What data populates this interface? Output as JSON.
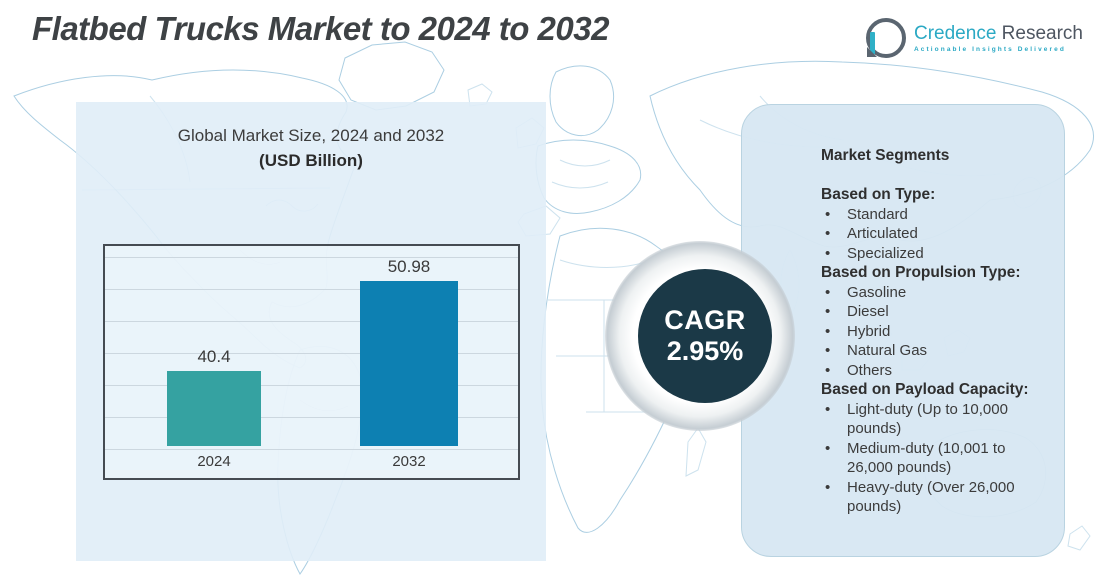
{
  "header": {
    "title": "Flatbed Trucks Market to 2024 to 2032"
  },
  "logo": {
    "icon": "bar-chart-bubble-icon",
    "brand_primary": "Credence",
    "brand_secondary": "Research",
    "tagline": "Actionable Insights Delivered",
    "brand_color": "#2BA9C4",
    "text_color": "#4E5661"
  },
  "chart_data": {
    "type": "bar",
    "title": "Global Market Size, 2024 and 2032",
    "subtitle": "(USD Billion)",
    "categories": [
      "2024",
      "2032"
    ],
    "values": [
      40.4,
      50.98
    ],
    "value_labels": [
      "40.4",
      "50.98"
    ],
    "bar_colors": [
      "#35A2A1",
      "#0D80B2"
    ],
    "unit": "USD Billion",
    "ylim": [
      31.5,
      55.5
    ],
    "grid": true,
    "legend": "none"
  },
  "cagr": {
    "label": "CAGR",
    "value": "2.95%",
    "badge_color": "#1B3947"
  },
  "segments": {
    "title": "Market Segments",
    "sections": [
      {
        "heading": "Based on Type:",
        "items": [
          "Standard",
          "Articulated",
          "Specialized"
        ]
      },
      {
        "heading": "Based on Propulsion Type:",
        "items": [
          "Gasoline",
          "Diesel",
          "Hybrid",
          "Natural Gas",
          "Others"
        ]
      },
      {
        "heading": "Based on Payload Capacity:",
        "items": [
          "Light-duty (Up to 10,000 pounds)",
          "Medium-duty (10,001 to 26,000 pounds)",
          "Heavy-duty (Over 26,000 pounds)"
        ]
      }
    ]
  }
}
